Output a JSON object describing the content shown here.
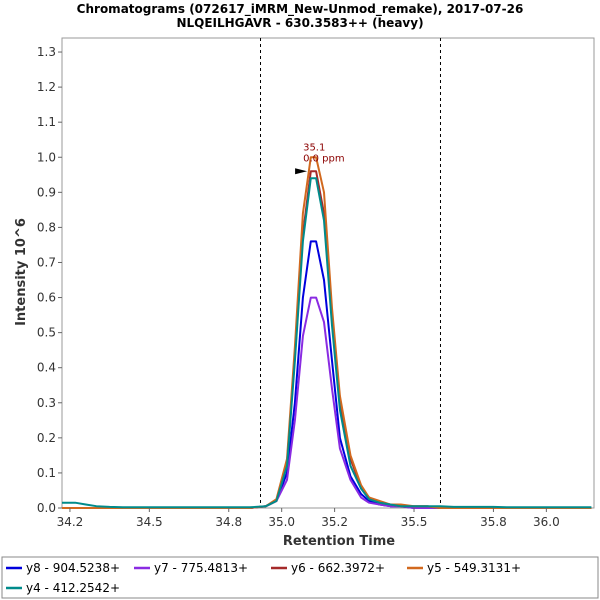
{
  "chart_data": {
    "type": "line",
    "title": "Chromatograms (072617_iMRM_New-Unmod_remake), 2017-07-26",
    "subtitle": "NLQEILHGAVR - 630.3583++ (heavy)",
    "xlabel": "Retention Time",
    "ylabel": "Intensity 10^6",
    "xlim": [
      34.17,
      36.18
    ],
    "ylim": [
      0,
      1.34
    ],
    "xticks": [
      "34.2",
      "34.5",
      "34.8",
      "35.0",
      "35.2",
      "35.5",
      "35.8",
      "36.0"
    ],
    "xtick_values": [
      34.2,
      34.5,
      34.8,
      35.0,
      35.2,
      35.5,
      35.8,
      36.0
    ],
    "yticks": [
      "0.0",
      "0.1",
      "0.2",
      "0.3",
      "0.4",
      "0.5",
      "0.6",
      "0.7",
      "0.8",
      "0.9",
      "1.0",
      "1.1",
      "1.2",
      "1.3"
    ],
    "ytick_values": [
      0.0,
      0.1,
      0.2,
      0.3,
      0.4,
      0.5,
      0.6,
      0.7,
      0.8,
      0.9,
      1.0,
      1.1,
      1.2,
      1.3
    ],
    "boundaries": [
      34.92,
      35.6
    ],
    "peak_annotation": {
      "x": 35.13,
      "y": 1.0,
      "label_rt": "35.1",
      "label_ppm": "0.0 ppm"
    },
    "grid": false,
    "legend_position": "bottom",
    "x": [
      34.17,
      34.22,
      34.26,
      34.3,
      34.35,
      34.4,
      34.5,
      34.6,
      34.7,
      34.8,
      34.88,
      34.94,
      34.98,
      35.02,
      35.05,
      35.08,
      35.11,
      35.13,
      35.16,
      35.19,
      35.22,
      35.26,
      35.3,
      35.33,
      35.37,
      35.41,
      35.45,
      35.5,
      35.55,
      35.6,
      35.65,
      35.7,
      35.75,
      35.8,
      35.85,
      35.9,
      35.95,
      36.0,
      36.05,
      36.1,
      36.17
    ],
    "series": [
      {
        "name": "y8 - 904.5238+",
        "color": "#0000dd",
        "values": [
          0.0,
          0.0,
          0.0,
          0.0,
          0.0,
          0.0,
          0.0,
          0.0,
          0.0,
          0.0,
          0.0,
          0.005,
          0.02,
          0.1,
          0.3,
          0.6,
          0.76,
          0.76,
          0.65,
          0.42,
          0.2,
          0.09,
          0.04,
          0.02,
          0.01,
          0.005,
          0.005,
          0.0,
          0.0,
          0.0,
          0.0,
          0.0,
          0.0,
          0.0,
          0.0,
          0.0,
          0.0,
          0.0,
          0.0,
          0.0,
          0.0
        ]
      },
      {
        "name": "y7 - 775.4813+",
        "color": "#8a2be2",
        "values": [
          0.0,
          0.0,
          0.0,
          0.0,
          0.0,
          0.0,
          0.0,
          0.0,
          0.0,
          0.0,
          0.0,
          0.005,
          0.02,
          0.08,
          0.25,
          0.49,
          0.6,
          0.6,
          0.53,
          0.34,
          0.17,
          0.08,
          0.03,
          0.015,
          0.01,
          0.005,
          0.005,
          0.0,
          0.0,
          0.0,
          0.0,
          0.0,
          0.0,
          0.0,
          0.0,
          0.0,
          0.0,
          0.0,
          0.0,
          0.0,
          0.0
        ]
      },
      {
        "name": "y6 - 662.3972+",
        "color": "#a52a2a",
        "values": [
          0.0,
          0.0,
          0.0,
          0.0,
          0.0,
          0.0,
          0.0,
          0.0,
          0.0,
          0.0,
          0.0,
          0.005,
          0.02,
          0.13,
          0.43,
          0.78,
          0.96,
          0.96,
          0.84,
          0.54,
          0.3,
          0.14,
          0.06,
          0.03,
          0.015,
          0.01,
          0.005,
          0.005,
          0.005,
          0.0,
          0.0,
          0.0,
          0.0,
          0.0,
          0.0,
          0.0,
          0.0,
          0.0,
          0.0,
          0.0,
          0.0
        ]
      },
      {
        "name": "y5 - 549.3131+",
        "color": "#d2691e",
        "values": [
          0.0,
          0.0,
          0.0,
          0.0,
          0.0,
          0.0,
          0.0,
          0.0,
          0.0,
          0.0,
          0.0,
          0.005,
          0.025,
          0.14,
          0.46,
          0.84,
          1.0,
          1.0,
          0.9,
          0.57,
          0.32,
          0.15,
          0.065,
          0.03,
          0.02,
          0.01,
          0.01,
          0.005,
          0.005,
          0.0,
          0.0,
          0.0,
          0.0,
          0.0,
          0.0,
          0.0,
          0.0,
          0.0,
          0.0,
          0.0,
          0.0
        ]
      },
      {
        "name": "y4 - 412.2542+",
        "color": "#008b8b",
        "values": [
          0.015,
          0.015,
          0.01,
          0.005,
          0.003,
          0.002,
          0.002,
          0.002,
          0.002,
          0.002,
          0.002,
          0.005,
          0.02,
          0.12,
          0.42,
          0.76,
          0.94,
          0.94,
          0.82,
          0.52,
          0.28,
          0.12,
          0.055,
          0.025,
          0.015,
          0.01,
          0.005,
          0.005,
          0.005,
          0.005,
          0.003,
          0.003,
          0.003,
          0.003,
          0.002,
          0.002,
          0.002,
          0.002,
          0.002,
          0.002,
          0.002
        ]
      }
    ]
  }
}
